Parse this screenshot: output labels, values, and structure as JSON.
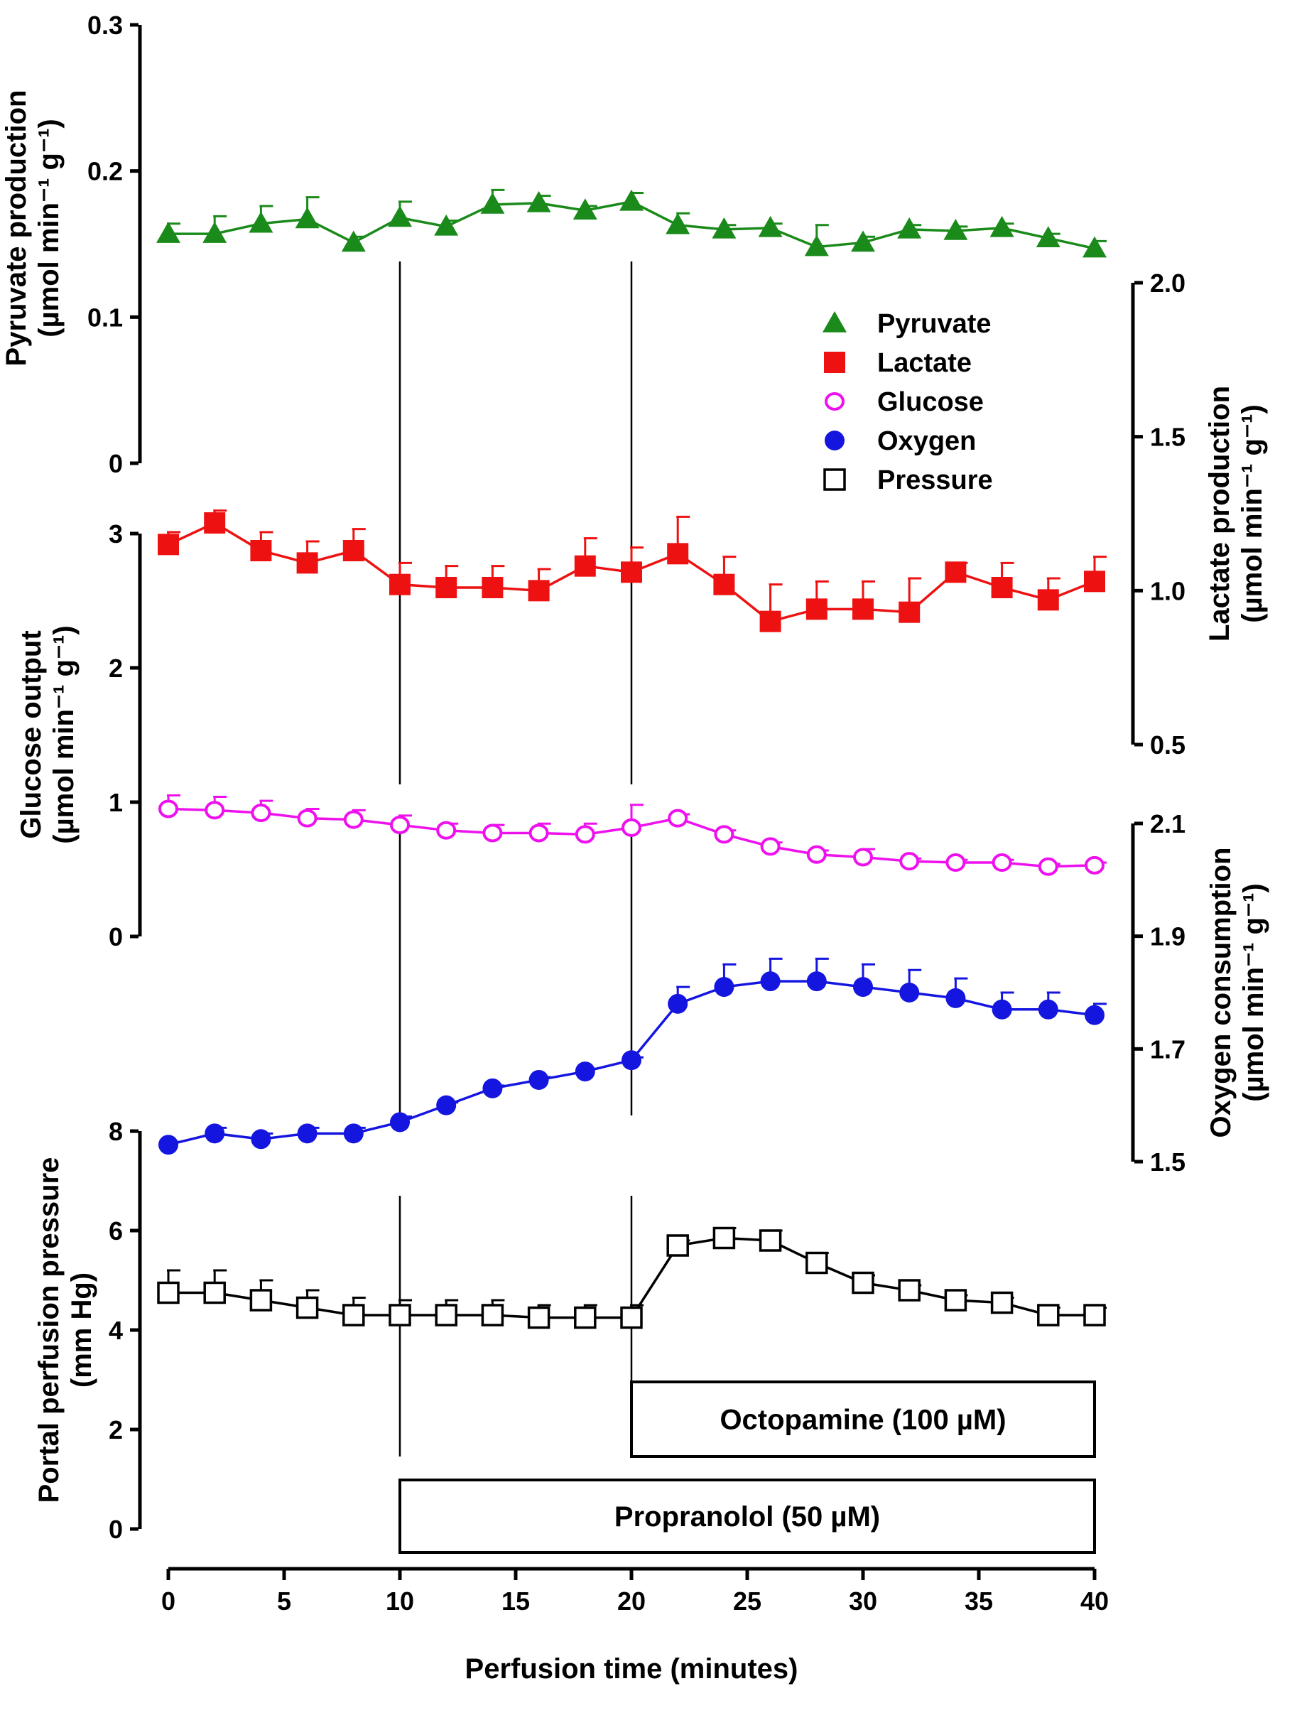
{
  "chart_data": {
    "type": "line",
    "x_axis": {
      "label": "Perfusion time (minutes)",
      "ticks": [
        "0",
        "5",
        "10",
        "15",
        "20",
        "25",
        "30",
        "35",
        "40"
      ],
      "range": [
        0,
        40
      ]
    },
    "x": [
      0,
      2,
      4,
      6,
      8,
      10,
      12,
      14,
      16,
      18,
      20,
      22,
      24,
      26,
      28,
      30,
      32,
      34,
      36,
      38,
      40
    ],
    "y_axes": [
      {
        "id": "pyruvate",
        "side": "left",
        "label_line1": "Pyruvate production",
        "label_line2": "(µmol min⁻¹ g⁻¹)",
        "range": [
          0,
          0.3
        ],
        "ticks": [
          "0",
          "0.1",
          "0.2",
          "0.3"
        ]
      },
      {
        "id": "lactate",
        "side": "right",
        "label_line1": "Lactate production",
        "label_line2": "(µmol min⁻¹ g⁻¹)",
        "range": [
          0.5,
          2.0
        ],
        "ticks": [
          "0.5",
          "1.0",
          "1.5",
          "2.0"
        ]
      },
      {
        "id": "glucose",
        "side": "left",
        "label_line1": "Glucose output",
        "label_line2": "(µmol min⁻¹ g⁻¹)",
        "range": [
          0,
          3
        ],
        "ticks": [
          "0",
          "1",
          "2",
          "3"
        ]
      },
      {
        "id": "oxygen",
        "side": "right",
        "label_line1": "Oxygen consumption",
        "label_line2": "(µmol min⁻¹ g⁻¹)",
        "range": [
          1.5,
          2.1
        ],
        "ticks": [
          "1.5",
          "1.7",
          "1.9",
          "2.1"
        ]
      },
      {
        "id": "pressure",
        "side": "left",
        "label_line1": "Portal perfusion pressure",
        "label_line2": "(mm Hg)",
        "range": [
          0,
          8
        ],
        "ticks": [
          "0",
          "2",
          "4",
          "6",
          "8"
        ]
      }
    ],
    "series": [
      {
        "name": "Pyruvate",
        "axis": "pyruvate",
        "color": "#1a8a1a",
        "marker": "triangle",
        "values": [
          0.157,
          0.157,
          0.164,
          0.167,
          0.151,
          0.168,
          0.162,
          0.177,
          0.178,
          0.173,
          0.179,
          0.163,
          0.16,
          0.161,
          0.148,
          0.151,
          0.16,
          0.159,
          0.161,
          0.154,
          0.147
        ],
        "errors": [
          0.007,
          0.012,
          0.012,
          0.015,
          0.004,
          0.011,
          0.004,
          0.01,
          0.005,
          0.003,
          0.006,
          0.008,
          0.003,
          0.003,
          0.015,
          0.004,
          0.003,
          0.003,
          0.003,
          0.003,
          0.005
        ]
      },
      {
        "name": "Lactate",
        "axis": "lactate",
        "color": "#ee1111",
        "marker": "square",
        "values": [
          1.15,
          1.22,
          1.13,
          1.09,
          1.13,
          1.02,
          1.01,
          1.01,
          1.0,
          1.08,
          1.06,
          1.12,
          1.02,
          0.9,
          0.94,
          0.94,
          0.93,
          1.06,
          1.01,
          0.97,
          1.03
        ],
        "errors": [
          0.04,
          0.04,
          0.06,
          0.07,
          0.07,
          0.07,
          0.07,
          0.07,
          0.07,
          0.09,
          0.08,
          0.12,
          0.09,
          0.12,
          0.09,
          0.09,
          0.11,
          0.03,
          0.08,
          0.07,
          0.08
        ]
      },
      {
        "name": "Glucose",
        "axis": "glucose",
        "color": "#ee11ee",
        "marker": "open-circle",
        "values": [
          0.95,
          0.94,
          0.92,
          0.88,
          0.87,
          0.83,
          0.79,
          0.77,
          0.77,
          0.76,
          0.81,
          0.88,
          0.76,
          0.67,
          0.61,
          0.59,
          0.56,
          0.55,
          0.55,
          0.52,
          0.53
        ],
        "errors": [
          0.1,
          0.1,
          0.09,
          0.07,
          0.07,
          0.07,
          0.05,
          0.06,
          0.07,
          0.08,
          0.17,
          0.03,
          0.03,
          0.03,
          0.03,
          0.06,
          0.02,
          0.02,
          0.02,
          0.02,
          0.02
        ]
      },
      {
        "name": "Oxygen",
        "axis": "oxygen",
        "color": "#1515e0",
        "marker": "filled-circle",
        "values": [
          1.53,
          1.55,
          1.54,
          1.55,
          1.55,
          1.57,
          1.6,
          1.63,
          1.645,
          1.66,
          1.68,
          1.78,
          1.81,
          1.82,
          1.82,
          1.81,
          1.8,
          1.79,
          1.77,
          1.77,
          1.76
        ],
        "errors": [
          0.005,
          0.01,
          0.01,
          0.01,
          0.01,
          0.01,
          0.005,
          0.005,
          0.005,
          0.005,
          0.005,
          0.03,
          0.04,
          0.04,
          0.04,
          0.04,
          0.04,
          0.035,
          0.03,
          0.03,
          0.02
        ]
      },
      {
        "name": "Pressure",
        "axis": "pressure",
        "color": "#000000",
        "marker": "open-square",
        "values": [
          4.75,
          4.75,
          4.6,
          4.45,
          4.3,
          4.3,
          4.3,
          4.3,
          4.25,
          4.25,
          4.25,
          5.7,
          5.85,
          5.8,
          5.35,
          4.95,
          4.8,
          4.6,
          4.55,
          4.3,
          4.3
        ],
        "errors": [
          0.45,
          0.45,
          0.4,
          0.35,
          0.35,
          0.3,
          0.3,
          0.3,
          0.25,
          0.25,
          0.25,
          0.1,
          0.2,
          0.2,
          0.2,
          0.15,
          0.1,
          0.1,
          0.1,
          0.15,
          0.15
        ]
      }
    ],
    "treatments": [
      {
        "label": "Octopamine (100 µM)",
        "start": 20,
        "end": 40
      },
      {
        "label": "Propranolol (50 µM)",
        "start": 10,
        "end": 40
      }
    ],
    "vertical_markers": [
      10,
      20
    ],
    "legend_position": "upper-right",
    "legend": [
      "Pyruvate",
      "Lactate",
      "Glucose",
      "Oxygen",
      "Pressure"
    ]
  }
}
